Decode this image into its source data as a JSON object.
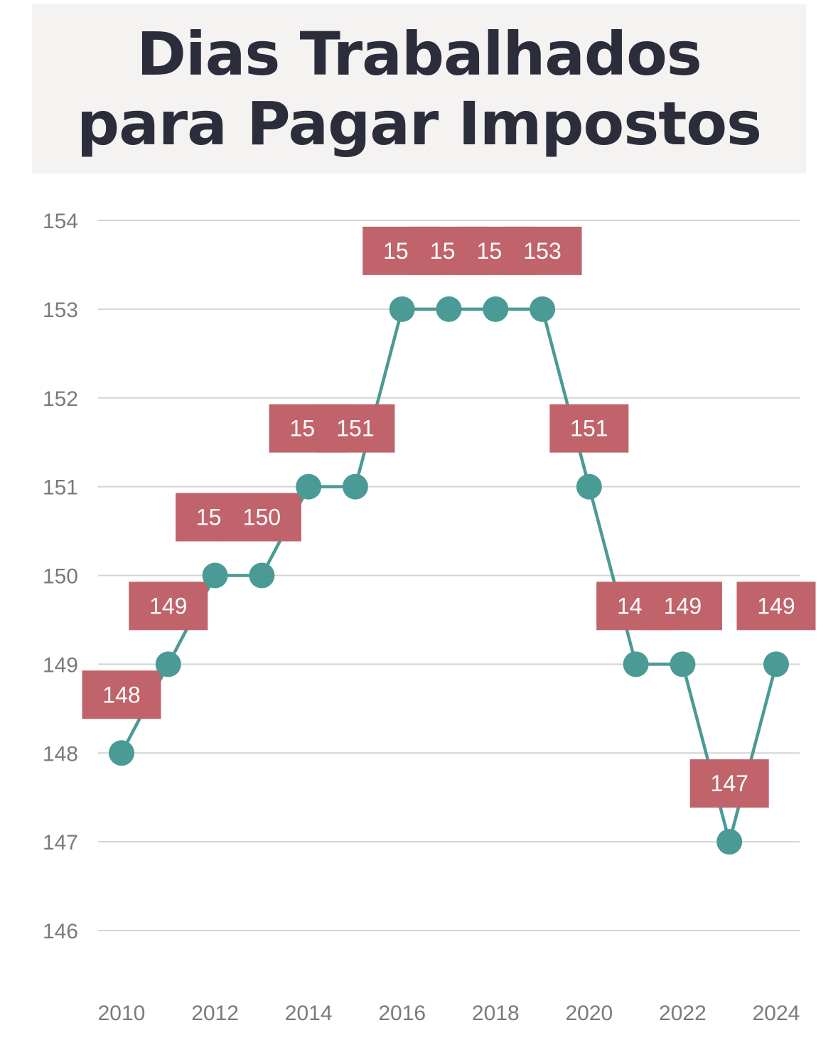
{
  "title": "Dias Trabalhados para Pagar Impostos",
  "colors": {
    "line": "#4a9a96",
    "marker": "#4a9a96",
    "label_bg": "#c0636a",
    "label_text": "#ffffff",
    "grid": "#d4d4d4",
    "tick": "#7a7a7a",
    "title_bg": "#f4f3f2",
    "title_text": "#2c2d3a"
  },
  "chart_data": {
    "type": "line",
    "title": "Dias Trabalhados para Pagar Impostos",
    "xlabel": "",
    "ylabel": "",
    "x": [
      2010,
      2011,
      2012,
      2013,
      2014,
      2015,
      2016,
      2017,
      2018,
      2019,
      2020,
      2021,
      2022,
      2023,
      2024
    ],
    "values": [
      148,
      149,
      150,
      150,
      151,
      151,
      153,
      153,
      153,
      153,
      151,
      149,
      149,
      147,
      149
    ],
    "ylim": [
      146,
      154
    ],
    "yticks": [
      146,
      147,
      148,
      149,
      150,
      151,
      152,
      153,
      154
    ],
    "xticks": [
      2010,
      2012,
      2014,
      2016,
      2018,
      2020,
      2022,
      2024
    ],
    "xlim": [
      2009.5,
      2024.5
    ],
    "grid": true,
    "data_labels": true
  }
}
